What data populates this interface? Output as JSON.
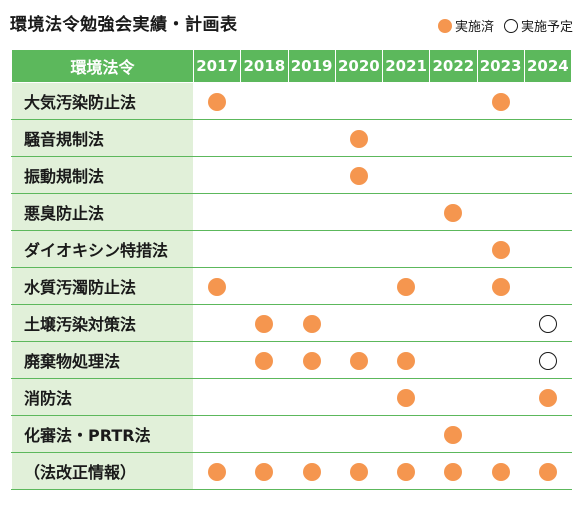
{
  "title": "環境法令勉強会実績・計画表",
  "legend": {
    "done_label": "実施済",
    "planned_label": "実施予定",
    "done_color": "#f5964f"
  },
  "table": {
    "name_header": "環境法令",
    "years": [
      "2017",
      "2018",
      "2019",
      "2020",
      "2021",
      "2022",
      "2023",
      "2024"
    ],
    "rows": [
      {
        "name": "大気汚染防止法",
        "marks": [
          "done",
          "",
          "",
          "",
          "",
          "",
          "done",
          ""
        ]
      },
      {
        "name": "騒音規制法",
        "marks": [
          "",
          "",
          "",
          "done",
          "",
          "",
          "",
          ""
        ]
      },
      {
        "name": "振動規制法",
        "marks": [
          "",
          "",
          "",
          "done",
          "",
          "",
          "",
          ""
        ]
      },
      {
        "name": "悪臭防止法",
        "marks": [
          "",
          "",
          "",
          "",
          "",
          "done",
          "",
          ""
        ]
      },
      {
        "name": "ダイオキシン特措法",
        "marks": [
          "",
          "",
          "",
          "",
          "",
          "",
          "done",
          ""
        ]
      },
      {
        "name": "水質汚濁防止法",
        "marks": [
          "done",
          "",
          "",
          "",
          "done",
          "",
          "done",
          ""
        ]
      },
      {
        "name": "土壌汚染対策法",
        "marks": [
          "",
          "done",
          "done",
          "",
          "",
          "",
          "",
          "planned"
        ]
      },
      {
        "name": "廃棄物処理法",
        "marks": [
          "",
          "done",
          "done",
          "done",
          "done",
          "",
          "",
          "planned"
        ]
      },
      {
        "name": "消防法",
        "marks": [
          "",
          "",
          "",
          "",
          "done",
          "",
          "",
          "done"
        ]
      },
      {
        "name": "化審法・PRTR法",
        "marks": [
          "",
          "",
          "",
          "",
          "",
          "done",
          "",
          ""
        ]
      },
      {
        "name": "（法改正情報）",
        "marks": [
          "done",
          "done",
          "done",
          "done",
          "done",
          "done",
          "done",
          "done"
        ]
      }
    ]
  }
}
